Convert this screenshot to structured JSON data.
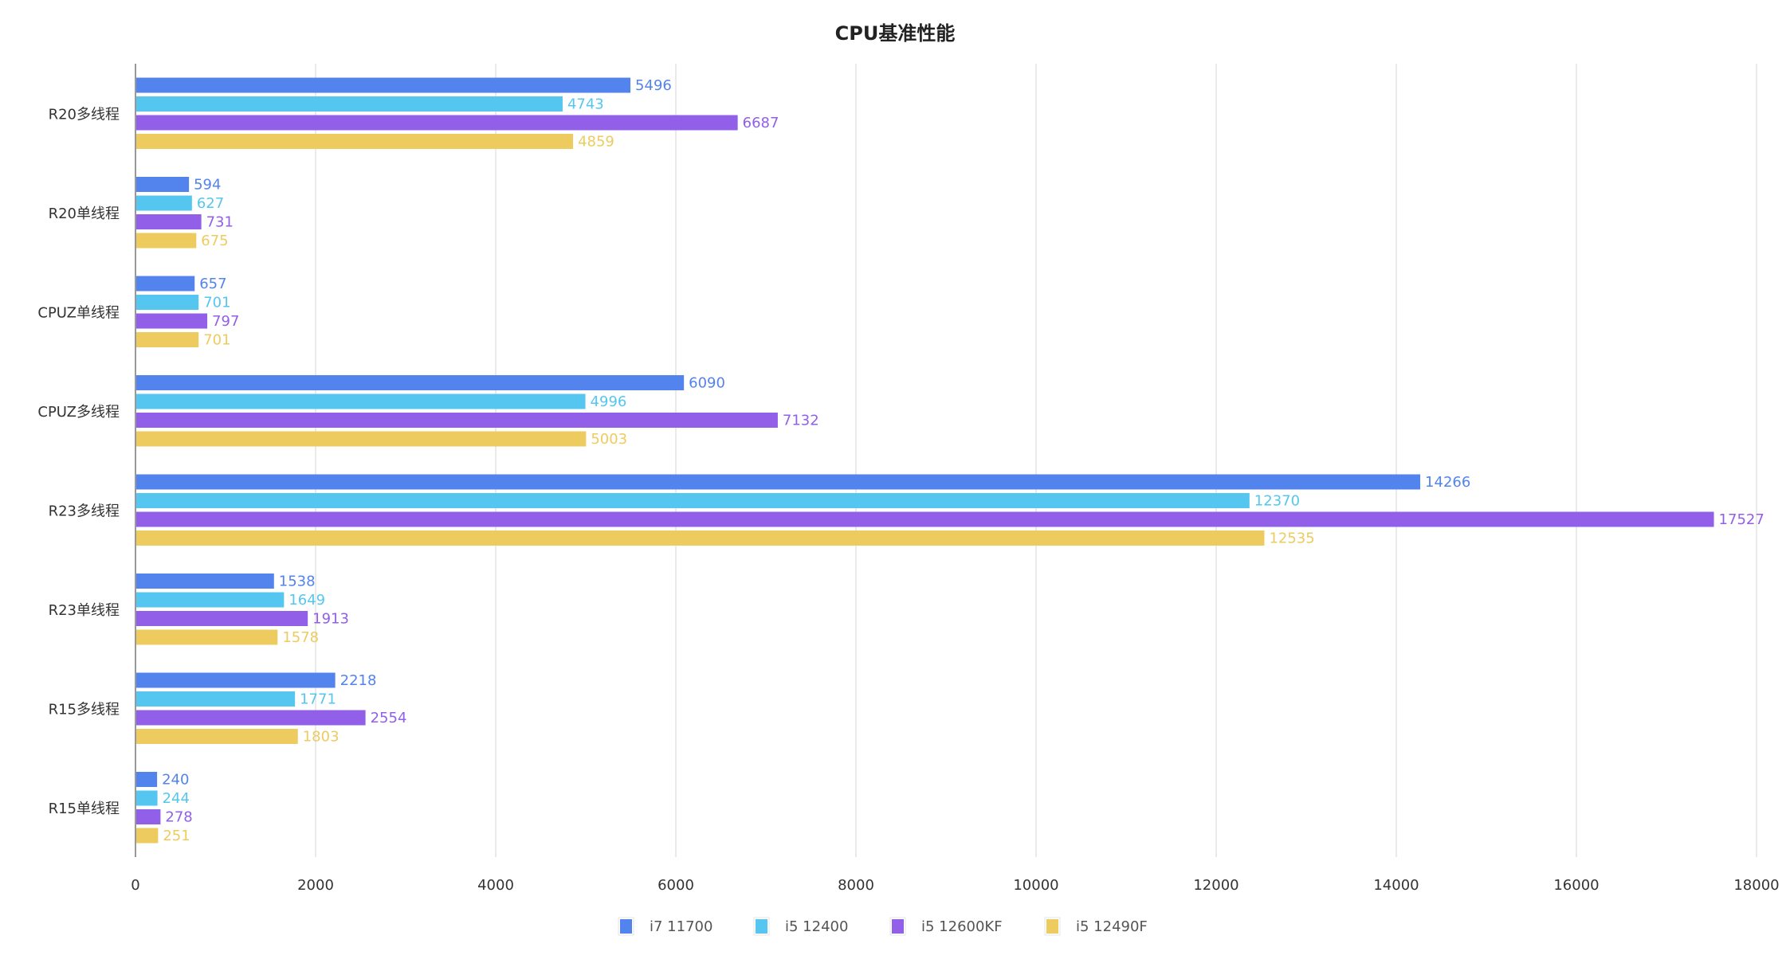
{
  "chart_data": {
    "type": "bar",
    "orientation": "horizontal",
    "title": "CPU基准性能",
    "xlabel": "",
    "ylabel": "",
    "xlim": [
      0,
      18000
    ],
    "xticks": [
      0,
      2000,
      4000,
      6000,
      8000,
      10000,
      12000,
      14000,
      16000,
      18000
    ],
    "grid": true,
    "legend_position": "bottom",
    "categories": [
      "R20多线程",
      "R20单线程",
      "CPUZ单线程",
      "CPUZ多线程",
      "R23多线程",
      "R23单线程",
      "R15多线程",
      "R15单线程"
    ],
    "series": [
      {
        "name": "i7 11700",
        "color": "#5383EC",
        "values": [
          5496,
          594,
          657,
          6090,
          14266,
          1538,
          2218,
          240
        ]
      },
      {
        "name": "i5 12400",
        "color": "#55C6EF",
        "values": [
          4743,
          627,
          701,
          4996,
          12370,
          1649,
          1771,
          244
        ]
      },
      {
        "name": "i5 12600KF",
        "color": "#915FE8",
        "values": [
          6687,
          731,
          797,
          7132,
          17527,
          1913,
          2554,
          278
        ]
      },
      {
        "name": "i5 12490F",
        "color": "#EECB5E",
        "values": [
          4859,
          675,
          701,
          5003,
          12535,
          1578,
          1803,
          251
        ]
      }
    ]
  }
}
